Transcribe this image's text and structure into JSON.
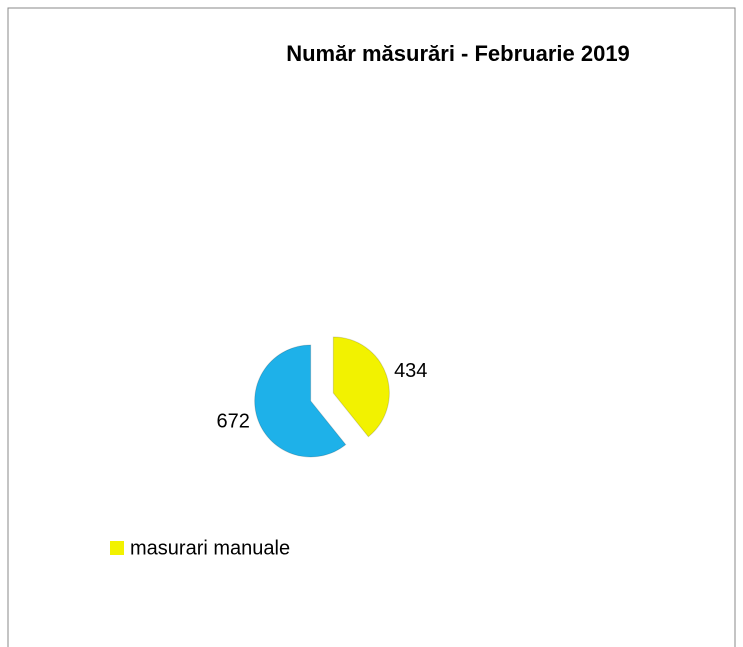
{
  "chart_data": {
    "type": "pie",
    "title": "Număr măsurări - Februarie 2019",
    "categories": [
      "masurari manuale",
      null
    ],
    "values": [
      434,
      672
    ],
    "colors": [
      "#f2f200",
      "#1eb1e9"
    ]
  }
}
